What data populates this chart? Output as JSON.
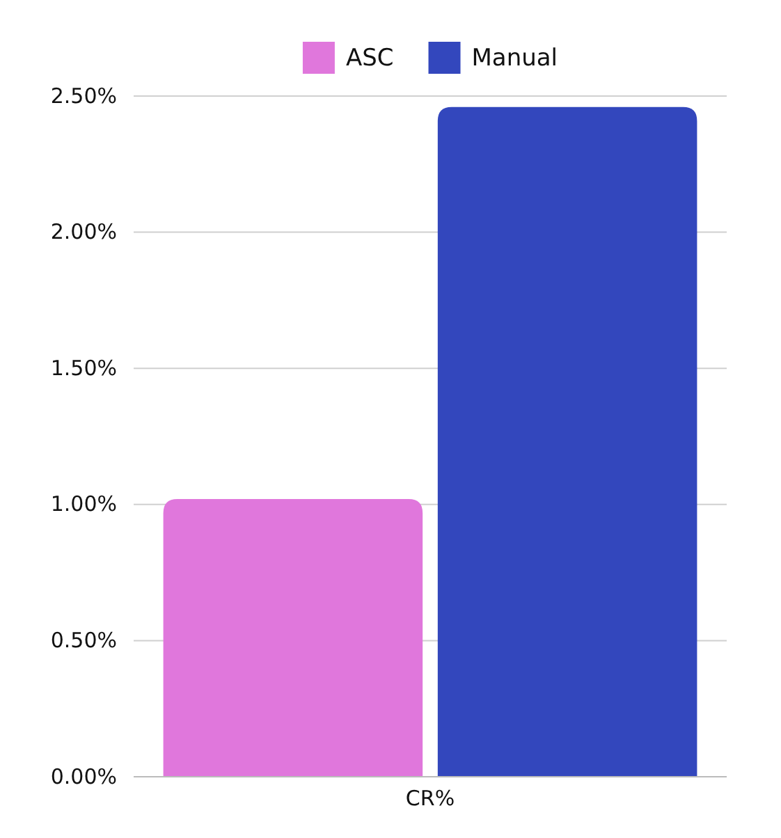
{
  "chart_data": {
    "type": "bar",
    "categories": [
      "CR%"
    ],
    "series": [
      {
        "name": "ASC",
        "color": "#e077dc",
        "values": [
          1.02
        ]
      },
      {
        "name": "Manual",
        "color": "#3347bd",
        "values": [
          2.46
        ]
      }
    ],
    "ylim": [
      0,
      2.5
    ],
    "yticks": [
      {
        "value": 0,
        "label": "0.00%"
      },
      {
        "value": 0.5,
        "label": "0.50%"
      },
      {
        "value": 1,
        "label": "1.00%"
      },
      {
        "value": 1.5,
        "label": "1.50%"
      },
      {
        "value": 2,
        "label": "2.00%"
      },
      {
        "value": 2.5,
        "label": "2.50%"
      }
    ],
    "grid": "y",
    "legend": "top"
  }
}
